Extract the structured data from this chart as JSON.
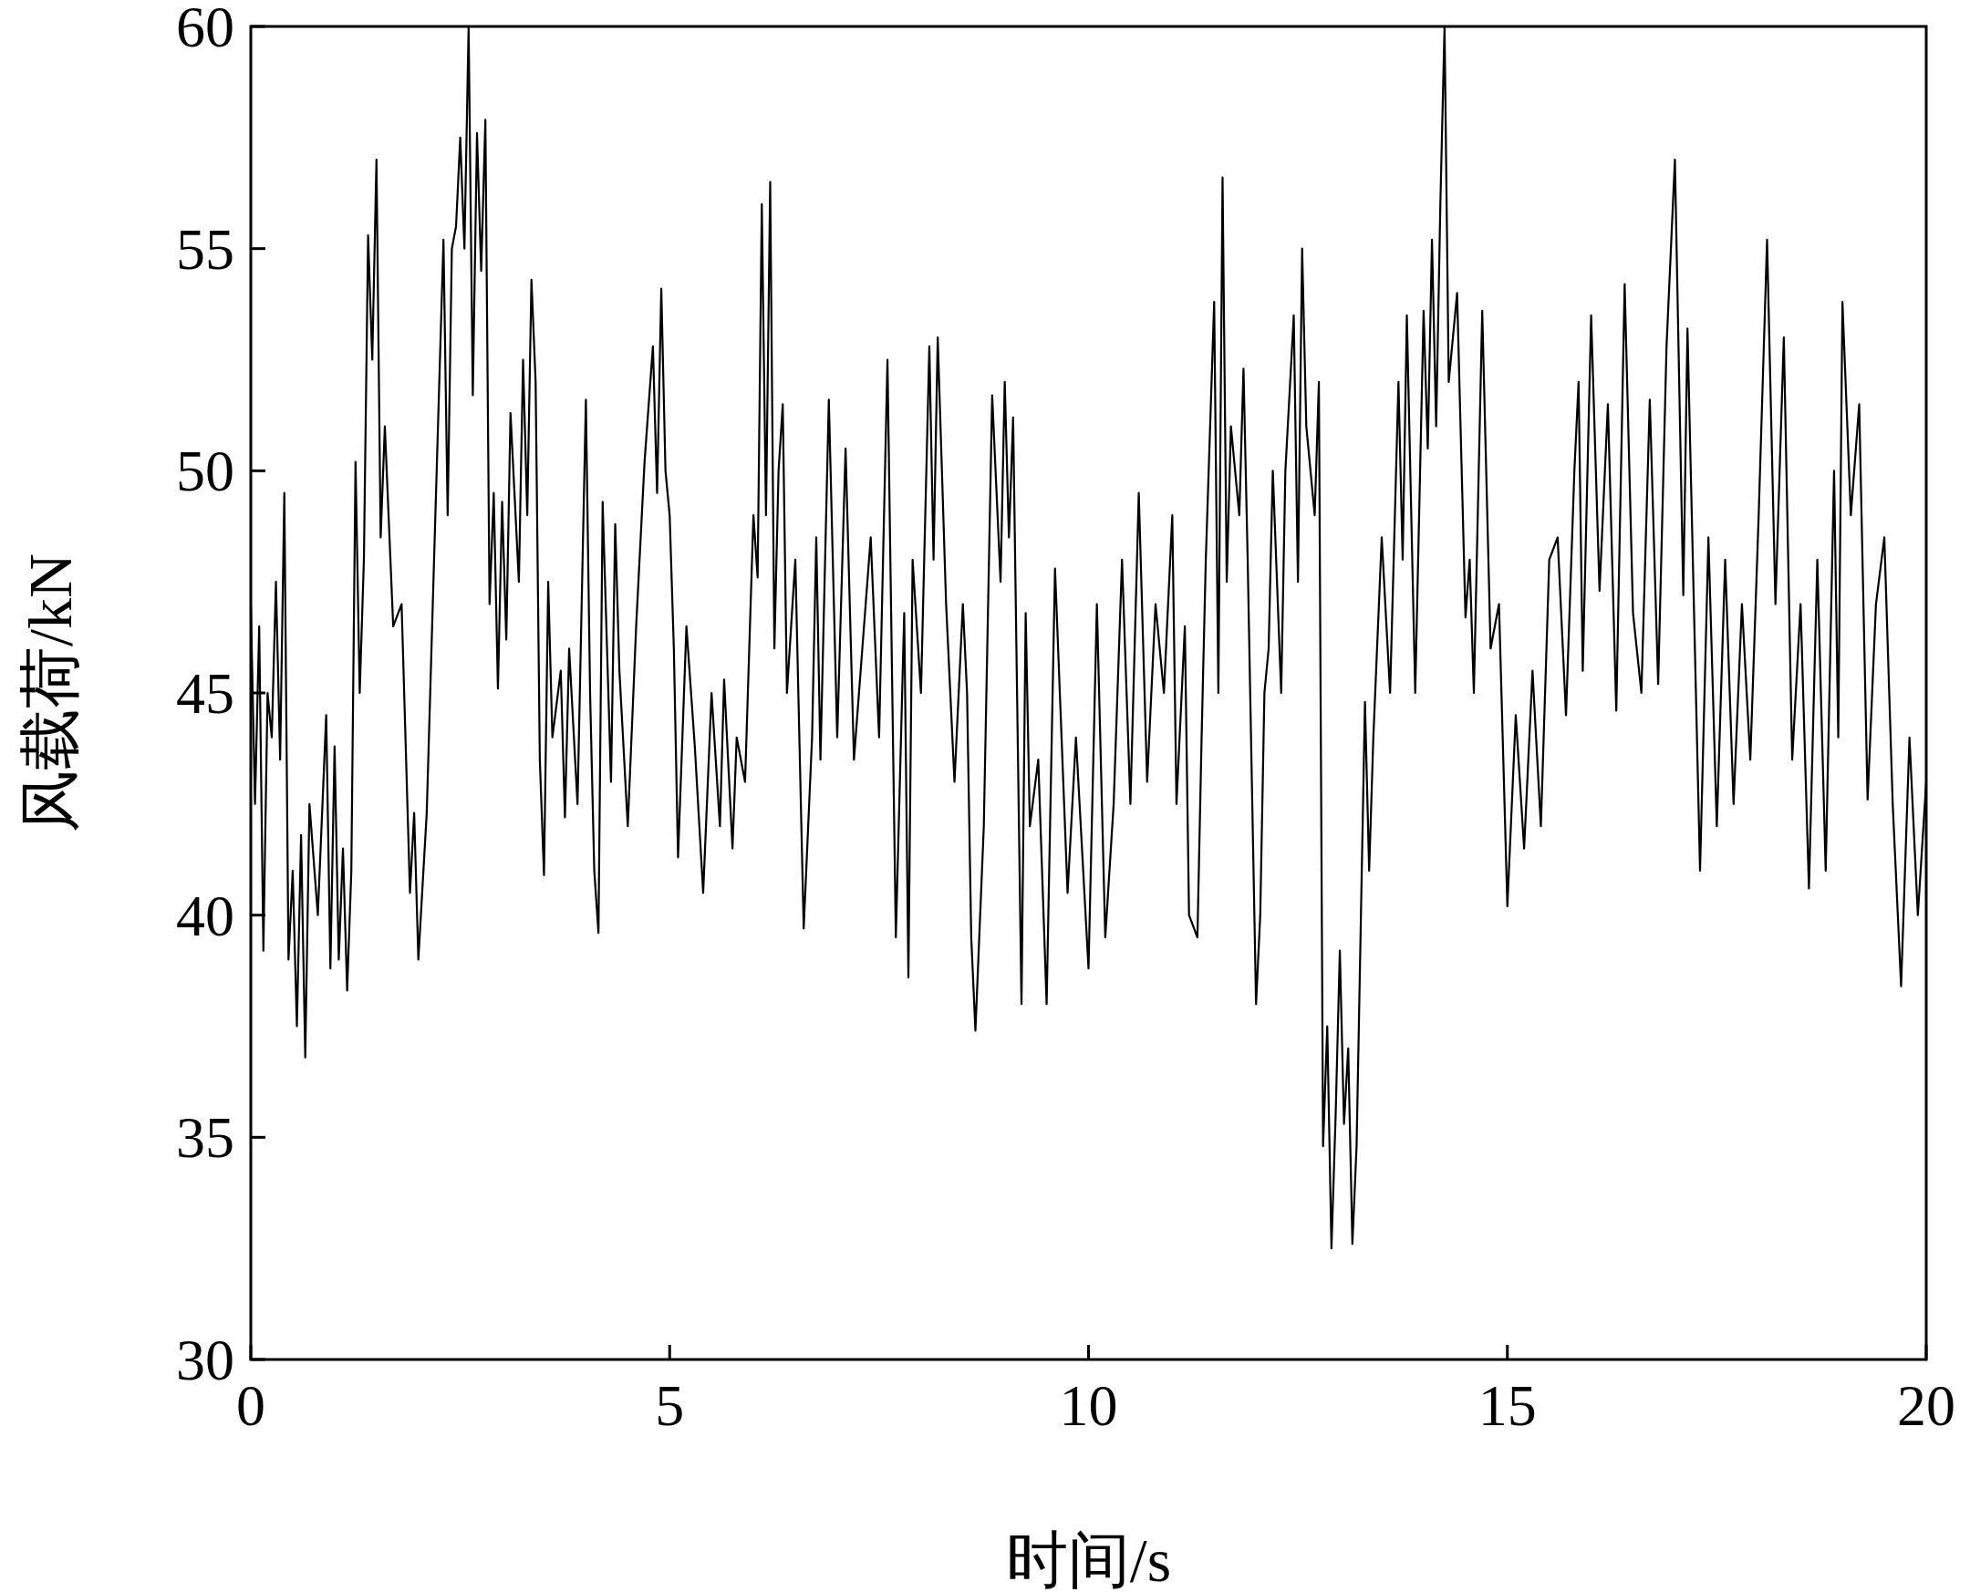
{
  "chart_data": {
    "type": "line",
    "xlabel": "时间/s",
    "ylabel": "风载荷/kN",
    "color": "#000000",
    "xlim": [
      0,
      20
    ],
    "ylim": [
      30,
      60
    ],
    "xticks": [
      0,
      5,
      10,
      15,
      20
    ],
    "yticks": [
      30,
      35,
      40,
      45,
      50,
      55,
      60
    ],
    "grid": false,
    "marker": "none",
    "line_style": "solid",
    "x": [
      0.0,
      0.05,
      0.1,
      0.15,
      0.2,
      0.25,
      0.3,
      0.35,
      0.4,
      0.45,
      0.5,
      0.55,
      0.6,
      0.65,
      0.7,
      0.8,
      0.9,
      0.95,
      1.0,
      1.05,
      1.1,
      1.15,
      1.2,
      1.25,
      1.3,
      1.35,
      1.4,
      1.45,
      1.5,
      1.55,
      1.6,
      1.7,
      1.8,
      1.9,
      1.95,
      2.0,
      2.1,
      2.2,
      2.3,
      2.35,
      2.4,
      2.45,
      2.5,
      2.55,
      2.6,
      2.65,
      2.7,
      2.75,
      2.8,
      2.85,
      2.9,
      2.95,
      3.0,
      3.05,
      3.1,
      3.2,
      3.25,
      3.3,
      3.35,
      3.4,
      3.45,
      3.5,
      3.55,
      3.6,
      3.7,
      3.75,
      3.8,
      3.9,
      4.0,
      4.05,
      4.1,
      4.15,
      4.2,
      4.3,
      4.35,
      4.4,
      4.5,
      4.6,
      4.7,
      4.8,
      4.85,
      4.9,
      4.95,
      5.0,
      5.05,
      5.1,
      5.2,
      5.3,
      5.4,
      5.5,
      5.6,
      5.65,
      5.75,
      5.8,
      5.9,
      6.0,
      6.05,
      6.1,
      6.15,
      6.2,
      6.25,
      6.3,
      6.35,
      6.4,
      6.5,
      6.6,
      6.7,
      6.75,
      6.8,
      6.9,
      7.0,
      7.1,
      7.2,
      7.3,
      7.4,
      7.5,
      7.6,
      7.7,
      7.8,
      7.85,
      7.9,
      8.0,
      8.1,
      8.15,
      8.2,
      8.3,
      8.4,
      8.5,
      8.55,
      8.6,
      8.65,
      8.75,
      8.85,
      8.95,
      9.0,
      9.05,
      9.1,
      9.2,
      9.25,
      9.3,
      9.4,
      9.5,
      9.6,
      9.75,
      9.85,
      10.0,
      10.1,
      10.2,
      10.3,
      10.4,
      10.5,
      10.6,
      10.7,
      10.8,
      10.9,
      11.0,
      11.05,
      11.15,
      11.2,
      11.3,
      11.35,
      11.4,
      11.5,
      11.55,
      11.6,
      11.65,
      11.7,
      11.8,
      11.85,
      11.9,
      12.0,
      12.05,
      12.1,
      12.15,
      12.2,
      12.3,
      12.35,
      12.45,
      12.5,
      12.55,
      12.6,
      12.7,
      12.75,
      12.8,
      12.85,
      12.9,
      12.95,
      13.0,
      13.05,
      13.1,
      13.15,
      13.2,
      13.3,
      13.35,
      13.4,
      13.5,
      13.6,
      13.7,
      13.75,
      13.8,
      13.9,
      14.0,
      14.05,
      14.1,
      14.15,
      14.2,
      14.25,
      14.3,
      14.4,
      14.5,
      14.55,
      14.6,
      14.7,
      14.8,
      14.9,
      15.0,
      15.1,
      15.2,
      15.3,
      15.4,
      15.5,
      15.6,
      15.7,
      15.8,
      15.85,
      15.9,
      16.0,
      16.1,
      16.2,
      16.3,
      16.4,
      16.5,
      16.6,
      16.7,
      16.8,
      16.9,
      17.0,
      17.1,
      17.15,
      17.3,
      17.4,
      17.5,
      17.6,
      17.7,
      17.8,
      17.9,
      18.0,
      18.1,
      18.2,
      18.3,
      18.4,
      18.5,
      18.6,
      18.7,
      18.8,
      18.9,
      18.95,
      19.0,
      19.1,
      19.2,
      19.3,
      19.4,
      19.5,
      19.6,
      19.7,
      19.8,
      19.9,
      20.0
    ],
    "values": [
      47,
      42.5,
      46.5,
      39.2,
      45,
      44,
      47.5,
      43.5,
      49.5,
      39,
      41,
      37.5,
      41.8,
      36.8,
      42.5,
      40,
      44.5,
      38.8,
      43.8,
      39,
      41.5,
      38.3,
      41,
      50.2,
      45,
      48,
      55.3,
      52.5,
      57,
      48.5,
      51,
      46.5,
      47,
      40.5,
      42.3,
      39,
      42.3,
      48.8,
      55.2,
      49,
      55,
      55.5,
      57.5,
      55,
      60,
      51.7,
      57.6,
      54.5,
      57.9,
      47,
      49.5,
      45.1,
      49.3,
      46.2,
      51.3,
      47.5,
      52.5,
      49,
      54.3,
      52,
      43.5,
      40.9,
      47.5,
      44,
      45.5,
      42.2,
      46,
      42.5,
      51.6,
      45,
      41,
      39.6,
      49.3,
      43,
      48.8,
      45.5,
      42,
      46.5,
      50.2,
      52.8,
      49.5,
      54.1,
      50,
      49,
      46,
      41.3,
      46.5,
      43.8,
      40.5,
      45,
      42,
      45.3,
      41.5,
      44,
      43,
      49,
      47.6,
      56,
      49,
      56.5,
      46,
      50,
      51.5,
      45,
      48,
      39.7,
      44,
      48.5,
      43.5,
      51.6,
      44,
      50.5,
      43.5,
      46,
      48.5,
      44,
      52.5,
      39.5,
      46.8,
      38.6,
      48,
      45,
      52.8,
      48,
      53,
      47,
      43,
      47,
      45,
      39.5,
      37.4,
      42,
      51.7,
      47.5,
      52,
      48.5,
      51.2,
      38,
      46.8,
      42,
      43.5,
      38,
      47.8,
      40.5,
      44,
      38.8,
      47,
      39.5,
      42.5,
      48,
      42.5,
      49.5,
      43,
      47,
      45,
      49,
      42.5,
      46.5,
      40,
      39.5,
      44,
      48,
      53.8,
      45,
      56.6,
      47.5,
      51,
      49,
      52.3,
      48,
      38,
      40,
      45,
      46,
      50,
      45,
      50,
      53.5,
      47.5,
      55,
      51,
      49,
      52,
      34.8,
      37.5,
      32.5,
      35.5,
      39.2,
      35.3,
      37,
      32.6,
      34.8,
      44.8,
      41,
      44,
      48.5,
      45,
      52,
      48,
      53.5,
      45,
      53.6,
      50.5,
      55.2,
      51,
      56,
      60,
      52,
      54,
      46.7,
      48,
      45,
      53.6,
      46,
      47,
      40.2,
      44.5,
      41.5,
      45.5,
      42,
      48,
      48.5,
      44.5,
      50,
      52,
      45.5,
      53.5,
      47.3,
      51.5,
      44.6,
      54.2,
      46.8,
      45,
      51.6,
      45.2,
      52.8,
      57,
      47.2,
      53.2,
      41,
      48.5,
      42,
      48,
      42.5,
      47,
      43.5,
      49,
      55.2,
      47,
      53,
      43.5,
      47,
      40.6,
      48,
      41,
      50,
      44,
      53.8,
      49,
      51.5,
      42.6,
      47,
      48.5,
      42.5,
      38.4,
      44,
      40,
      43
    ]
  }
}
